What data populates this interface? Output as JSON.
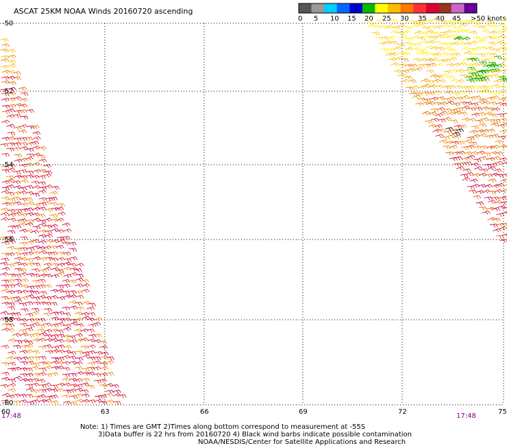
{
  "title": "ASCAT 25KM NOAA Winds 20160720 ascending",
  "legend": {
    "labels": [
      "0",
      "5",
      "10",
      "15",
      "20",
      "25",
      "30",
      "35",
      "40",
      "45",
      ">50 knots"
    ],
    "colors": [
      "#555555",
      "#999999",
      "#00ccff",
      "#0066ff",
      "#0000cc",
      "#00bb00",
      "#ffff00",
      "#ffbb00",
      "#ff7700",
      "#ff3333",
      "#dd0033",
      "#993322",
      "#cc66cc",
      "#660099"
    ]
  },
  "map": {
    "lat_labels": [
      "-50",
      "-52",
      "-54",
      "-56",
      "-58",
      "-60"
    ],
    "lon_labels": [
      "60",
      "63",
      "66",
      "69",
      "72",
      "75"
    ],
    "time_labels": [
      "17:48",
      "17:48"
    ],
    "barb_colors": {
      "yellow": "#ffee00",
      "gold": "#ffbb00",
      "orange": "#ee8800",
      "dark_orange": "#dd6600",
      "red": "#dd2222",
      "crimson": "#cc0044",
      "green": "#00aa00",
      "black": "#000000"
    }
  },
  "footer": {
    "line1": "Note: 1) Times are GMT 2)Times along bottom correspond to measurement at -55S",
    "line2": "3)Data buffer is 22 hrs from 20160720 4) Black wind barbs indicate possible contamination",
    "line3": "NOAA/NESDIS/Center for Satellite Applications and Research"
  }
}
